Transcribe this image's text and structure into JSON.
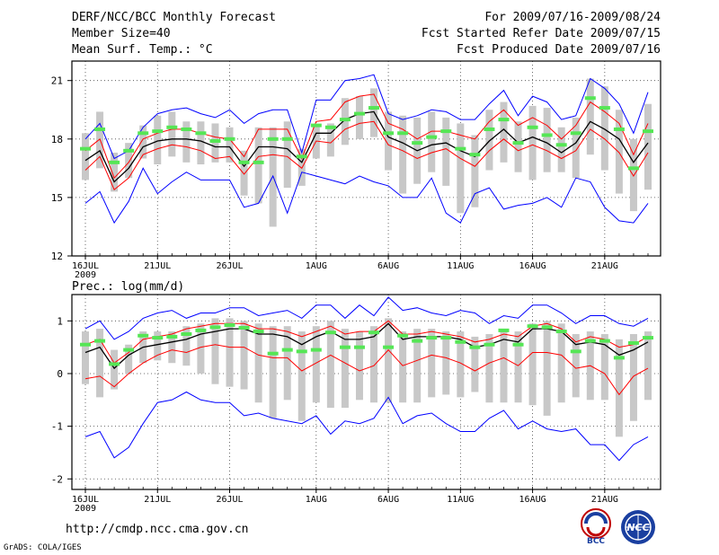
{
  "header": {
    "title": "DERF/NCC/BCC Monthly Forecast",
    "member_size": "Member Size=40",
    "variable": "Mean Surf. Temp.: °C",
    "period": "For 2009/07/16-2009/08/24",
    "start_date": "Fcst Started Refer Date 2009/07/15",
    "produced_date": "Fcst Produced Date 2009/07/16"
  },
  "footer": {
    "url": "http://cmdp.ncc.cma.gov.cn",
    "credit": "GrADS: COLA/IGES",
    "logo1_text": "BCC",
    "logo2_text": "NCC"
  },
  "colors": {
    "envelope": "#0000ff",
    "spread": "#ff0000",
    "mean": "#000000",
    "box": "#c8c8c8",
    "dash": "#55e655"
  },
  "chart_data": [
    {
      "type": "line",
      "title": "Mean Surf. Temp.: °C",
      "ylabel": "°C",
      "ylim": [
        12,
        22
      ],
      "yticks": [
        12,
        15,
        18,
        21
      ],
      "xlabels": [
        {
          "day": 1,
          "label": "16JUL",
          "sub": "2009"
        },
        {
          "day": 6,
          "label": "21JUL"
        },
        {
          "day": 11,
          "label": "26JUL"
        },
        {
          "day": 17,
          "label": "1AUG"
        },
        {
          "day": 22,
          "label": "6AUG"
        },
        {
          "day": 27,
          "label": "11AUG"
        },
        {
          "day": 32,
          "label": "16AUG"
        },
        {
          "day": 37,
          "label": "21AUG"
        }
      ],
      "days": 40,
      "series": [
        {
          "name": "max",
          "values": [
            18.0,
            18.8,
            17.0,
            17.4,
            18.6,
            19.3,
            19.5,
            19.6,
            19.3,
            19.1,
            19.5,
            18.8,
            19.3,
            19.5,
            19.5,
            17.3,
            20.0,
            20.0,
            21.0,
            21.1,
            21.3,
            19.3,
            19.0,
            19.2,
            19.5,
            19.4,
            19.0,
            19.0,
            19.8,
            20.5,
            19.2,
            20.2,
            19.9,
            19.0,
            19.2,
            21.1,
            20.6,
            19.8,
            18.3,
            20.4
          ]
        },
        {
          "name": "spread_upper",
          "values": [
            17.4,
            18.0,
            16.0,
            16.8,
            18.0,
            18.3,
            18.5,
            18.5,
            18.3,
            18.1,
            18.0,
            17.1,
            18.5,
            18.5,
            18.5,
            17.0,
            18.9,
            19.0,
            19.9,
            20.2,
            20.3,
            18.8,
            18.5,
            18.0,
            18.4,
            18.4,
            18.2,
            18.0,
            18.9,
            19.5,
            18.7,
            19.1,
            18.7,
            18.0,
            18.7,
            19.9,
            19.4,
            18.8,
            17.2,
            18.8
          ]
        },
        {
          "name": "mean",
          "values": [
            16.9,
            17.4,
            15.8,
            16.5,
            17.6,
            17.9,
            18.0,
            18.0,
            17.9,
            17.6,
            17.6,
            16.6,
            17.6,
            17.6,
            17.5,
            16.8,
            18.3,
            18.3,
            19.0,
            19.3,
            19.4,
            18.1,
            17.8,
            17.4,
            17.7,
            17.8,
            17.4,
            17.1,
            17.9,
            18.5,
            17.8,
            18.1,
            17.8,
            17.3,
            17.8,
            18.9,
            18.5,
            18.0,
            16.8,
            17.8
          ]
        },
        {
          "name": "spread_lower",
          "values": [
            16.4,
            17.1,
            15.4,
            16.0,
            17.2,
            17.5,
            17.7,
            17.6,
            17.4,
            17.0,
            17.1,
            16.2,
            17.1,
            17.2,
            17.1,
            16.5,
            17.9,
            17.8,
            18.5,
            18.8,
            18.9,
            17.7,
            17.4,
            17.0,
            17.3,
            17.5,
            17.0,
            16.6,
            17.4,
            18.0,
            17.4,
            17.7,
            17.4,
            17.0,
            17.4,
            18.5,
            18.0,
            17.3,
            16.1,
            17.3
          ]
        },
        {
          "name": "min",
          "values": [
            14.7,
            15.3,
            13.7,
            14.8,
            16.5,
            15.2,
            15.8,
            16.3,
            15.9,
            15.9,
            15.9,
            14.5,
            14.7,
            16.1,
            14.2,
            16.3,
            16.1,
            15.9,
            15.7,
            16.1,
            15.8,
            15.6,
            15.0,
            15.0,
            16.0,
            14.2,
            13.7,
            15.2,
            15.5,
            14.4,
            14.6,
            14.7,
            15.0,
            14.5,
            16.0,
            15.8,
            14.5,
            13.8,
            13.7,
            14.7
          ]
        },
        {
          "name": "box_high",
          "values": [
            18.3,
            19.4,
            17.3,
            17.8,
            18.7,
            19.2,
            19.4,
            18.9,
            18.9,
            18.8,
            18.6,
            17.4,
            18.6,
            18.6,
            18.9,
            17.5,
            18.7,
            18.8,
            20.1,
            20.2,
            20.6,
            19.4,
            19.2,
            19.1,
            19.4,
            19.1,
            18.8,
            18.2,
            19.5,
            19.9,
            18.9,
            19.7,
            19.6,
            18.6,
            19.1,
            21.1,
            20.7,
            19.5,
            18.0,
            19.8
          ]
        },
        {
          "name": "box_low",
          "values": [
            15.9,
            16.5,
            15.3,
            16.0,
            17.0,
            16.7,
            17.1,
            16.8,
            16.7,
            16.8,
            16.8,
            15.1,
            14.7,
            13.5,
            15.5,
            15.6,
            17.0,
            17.1,
            17.7,
            18.0,
            18.1,
            16.4,
            15.2,
            15.7,
            16.3,
            15.6,
            14.2,
            14.5,
            16.4,
            16.8,
            16.3,
            15.9,
            16.3,
            16.3,
            16.0,
            17.2,
            16.4,
            15.2,
            14.3,
            15.4
          ]
        },
        {
          "name": "forecast_marker",
          "values": [
            17.5,
            18.5,
            16.8,
            17.4,
            18.3,
            18.4,
            18.6,
            18.5,
            18.3,
            17.9,
            18.0,
            16.8,
            16.8,
            18.0,
            18.0,
            17.1,
            18.7,
            18.6,
            19.0,
            19.3,
            19.6,
            18.3,
            18.3,
            17.8,
            18.1,
            18.4,
            17.5,
            17.2,
            18.5,
            19.0,
            17.8,
            18.6,
            18.2,
            17.7,
            18.3,
            20.1,
            19.6,
            18.5,
            16.5,
            18.4
          ]
        }
      ]
    },
    {
      "type": "line",
      "title": "Prec.: log(mm/d)",
      "ylabel": "log(mm/d)",
      "ylim": [
        -2.2,
        1.5
      ],
      "yticks": [
        -2,
        -1,
        0,
        1
      ],
      "xlabels": [
        {
          "day": 1,
          "label": "16JUL",
          "sub": "2009"
        },
        {
          "day": 6,
          "label": "21JUL"
        },
        {
          "day": 11,
          "label": "26JUL"
        },
        {
          "day": 17,
          "label": "1AUG"
        },
        {
          "day": 22,
          "label": "6AUG"
        },
        {
          "day": 27,
          "label": "11AUG"
        },
        {
          "day": 32,
          "label": "16AUG"
        },
        {
          "day": 37,
          "label": "21AUG"
        }
      ],
      "days": 40,
      "series": [
        {
          "name": "max",
          "values": [
            0.85,
            1.0,
            0.65,
            0.8,
            1.05,
            1.15,
            1.2,
            1.05,
            1.15,
            1.15,
            1.25,
            1.25,
            1.1,
            1.15,
            1.2,
            1.05,
            1.3,
            1.3,
            1.05,
            1.3,
            1.1,
            1.45,
            1.2,
            1.25,
            1.15,
            1.1,
            1.2,
            1.15,
            0.95,
            1.1,
            1.05,
            1.3,
            1.3,
            1.15,
            0.95,
            1.1,
            1.1,
            0.95,
            0.9,
            1.05
          ]
        },
        {
          "name": "spread_upper",
          "values": [
            0.55,
            0.65,
            0.2,
            0.4,
            0.65,
            0.7,
            0.75,
            0.85,
            0.9,
            0.95,
            0.95,
            0.95,
            0.85,
            0.85,
            0.8,
            0.7,
            0.8,
            0.9,
            0.75,
            0.8,
            0.8,
            1.0,
            0.75,
            0.75,
            0.8,
            0.75,
            0.7,
            0.6,
            0.65,
            0.75,
            0.7,
            0.9,
            0.95,
            0.85,
            0.6,
            0.7,
            0.65,
            0.5,
            0.55,
            0.7
          ]
        },
        {
          "name": "mean",
          "values": [
            0.4,
            0.5,
            0.1,
            0.35,
            0.5,
            0.55,
            0.6,
            0.65,
            0.75,
            0.8,
            0.85,
            0.85,
            0.75,
            0.75,
            0.7,
            0.55,
            0.7,
            0.8,
            0.65,
            0.65,
            0.7,
            0.95,
            0.65,
            0.7,
            0.7,
            0.7,
            0.65,
            0.5,
            0.55,
            0.65,
            0.6,
            0.85,
            0.85,
            0.8,
            0.55,
            0.6,
            0.55,
            0.35,
            0.45,
            0.6
          ]
        },
        {
          "name": "spread_lower",
          "values": [
            -0.1,
            -0.05,
            -0.25,
            0.0,
            0.2,
            0.35,
            0.45,
            0.4,
            0.5,
            0.55,
            0.5,
            0.5,
            0.35,
            0.3,
            0.3,
            0.05,
            0.2,
            0.35,
            0.2,
            0.05,
            0.15,
            0.45,
            0.15,
            0.25,
            0.35,
            0.3,
            0.2,
            0.05,
            0.2,
            0.3,
            0.15,
            0.4,
            0.4,
            0.35,
            0.1,
            0.15,
            0.0,
            -0.4,
            -0.05,
            0.1
          ]
        },
        {
          "name": "min",
          "values": [
            -1.2,
            -1.1,
            -1.6,
            -1.4,
            -0.95,
            -0.55,
            -0.5,
            -0.35,
            -0.5,
            -0.55,
            -0.55,
            -0.8,
            -0.75,
            -0.85,
            -0.9,
            -0.95,
            -0.8,
            -1.15,
            -0.9,
            -0.95,
            -0.85,
            -0.45,
            -0.95,
            -0.8,
            -0.75,
            -0.95,
            -1.1,
            -1.1,
            -0.85,
            -0.7,
            -1.05,
            -0.9,
            -1.05,
            -1.1,
            -1.05,
            -1.35,
            -1.35,
            -1.65,
            -1.35,
            -1.2
          ]
        },
        {
          "name": "box_high",
          "values": [
            0.8,
            0.85,
            0.45,
            0.55,
            0.8,
            0.8,
            0.8,
            0.9,
            0.95,
            1.05,
            1.05,
            1.0,
            0.95,
            0.9,
            0.9,
            0.8,
            0.9,
            1.0,
            0.85,
            0.8,
            0.9,
            1.05,
            0.8,
            0.85,
            0.85,
            0.8,
            0.8,
            0.7,
            0.75,
            0.85,
            0.8,
            0.95,
            1.0,
            0.95,
            0.75,
            0.8,
            0.75,
            0.65,
            0.75,
            0.8
          ]
        },
        {
          "name": "box_low",
          "values": [
            -0.2,
            -0.45,
            -0.3,
            0.0,
            0.2,
            0.25,
            0.2,
            0.15,
            0.0,
            -0.2,
            -0.25,
            -0.3,
            -0.55,
            -0.85,
            -0.5,
            -0.9,
            -0.55,
            -0.65,
            -0.65,
            -0.5,
            -0.55,
            -0.55,
            -0.55,
            -0.55,
            -0.45,
            -0.4,
            -0.45,
            -0.35,
            -0.55,
            -0.55,
            -0.55,
            -0.6,
            -0.8,
            -0.55,
            -0.45,
            -0.5,
            -0.5,
            -1.2,
            -0.9,
            -0.5
          ]
        },
        {
          "name": "forecast_marker",
          "values": [
            0.55,
            0.62,
            0.18,
            0.45,
            0.72,
            0.68,
            0.7,
            0.75,
            0.82,
            0.88,
            0.92,
            0.87,
            0.8,
            0.38,
            0.45,
            0.42,
            0.45,
            0.78,
            0.5,
            0.5,
            0.78,
            0.5,
            0.72,
            0.62,
            0.68,
            0.68,
            0.6,
            0.5,
            0.55,
            0.82,
            0.55,
            0.9,
            0.88,
            0.8,
            0.42,
            0.62,
            0.62,
            0.3,
            0.58,
            0.68
          ]
        }
      ]
    }
  ]
}
